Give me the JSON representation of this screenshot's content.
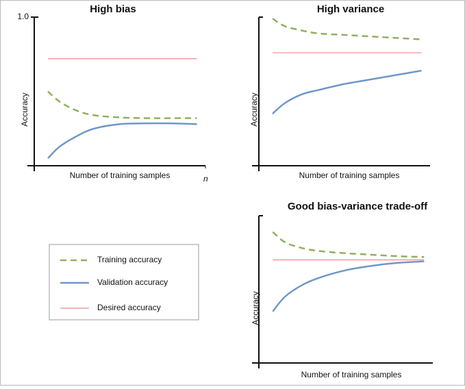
{
  "chart_data": [
    {
      "type": "line",
      "title": "High bias",
      "x_label": "Number of training samples",
      "y_label": "Accuracy",
      "x": [
        0.8,
        1.5,
        2.5,
        3.5,
        5,
        6.5,
        8,
        9.5
      ],
      "xlim": [
        0,
        10
      ],
      "ylim": [
        0,
        1
      ],
      "xticks": [
        {
          "value": 10,
          "label": "n"
        }
      ],
      "yticks": [
        {
          "value": 1,
          "label": "1.0"
        }
      ],
      "legend": "lower left",
      "series": [
        {
          "name": "Training accuracy",
          "color": "#8fb05e",
          "line_style": "dashed",
          "values": [
            0.5,
            0.43,
            0.37,
            0.34,
            0.325,
            0.32,
            0.32,
            0.32
          ]
        },
        {
          "name": "Validation accuracy",
          "color": "#6f97c9",
          "line_style": "solid",
          "values": [
            0.05,
            0.13,
            0.2,
            0.25,
            0.28,
            0.285,
            0.285,
            0.28
          ]
        },
        {
          "name": "Desired accuracy",
          "color": "#f08a8a",
          "line_style": "thin",
          "values": [
            0.72,
            0.72,
            0.72,
            0.72,
            0.72,
            0.72,
            0.72,
            0.72
          ]
        }
      ]
    },
    {
      "type": "line",
      "title": "High variance",
      "x_label": "Number of training samples",
      "y_label": "Accuracy",
      "x": [
        0.8,
        1.5,
        2.5,
        3.5,
        5,
        6.5,
        8,
        9.5
      ],
      "xlim": [
        0,
        10
      ],
      "ylim": [
        0,
        1
      ],
      "series": [
        {
          "color": "#8fb05e",
          "line_style": "dashed",
          "values": [
            0.99,
            0.94,
            0.91,
            0.89,
            0.88,
            0.87,
            0.86,
            0.85
          ]
        },
        {
          "color": "#6f97c9",
          "line_style": "solid",
          "values": [
            0.35,
            0.42,
            0.48,
            0.51,
            0.55,
            0.58,
            0.61,
            0.64
          ]
        },
        {
          "color": "#f08a8a",
          "line_style": "thin",
          "values": [
            0.76,
            0.76,
            0.76,
            0.76,
            0.76,
            0.76,
            0.76,
            0.76
          ]
        }
      ]
    },
    {
      "type": "line",
      "title": "Good bias-variance trade-off",
      "x_label": "Number of training samples",
      "y_label": "Accuracy",
      "x": [
        0.8,
        1.5,
        2.5,
        3.5,
        5,
        6.5,
        8,
        9.5
      ],
      "xlim": [
        0,
        10
      ],
      "ylim": [
        0,
        1
      ],
      "series": [
        {
          "color": "#8fb05e",
          "line_style": "dashed",
          "values": [
            0.89,
            0.82,
            0.78,
            0.76,
            0.745,
            0.735,
            0.725,
            0.72
          ]
        },
        {
          "color": "#6f97c9",
          "line_style": "solid",
          "values": [
            0.35,
            0.45,
            0.53,
            0.58,
            0.63,
            0.66,
            0.68,
            0.69
          ]
        },
        {
          "color": "#f08a8a",
          "line_style": "thin",
          "values": [
            0.7,
            0.7,
            0.7,
            0.7,
            0.7,
            0.7,
            0.7,
            0.7
          ]
        }
      ]
    }
  ]
}
